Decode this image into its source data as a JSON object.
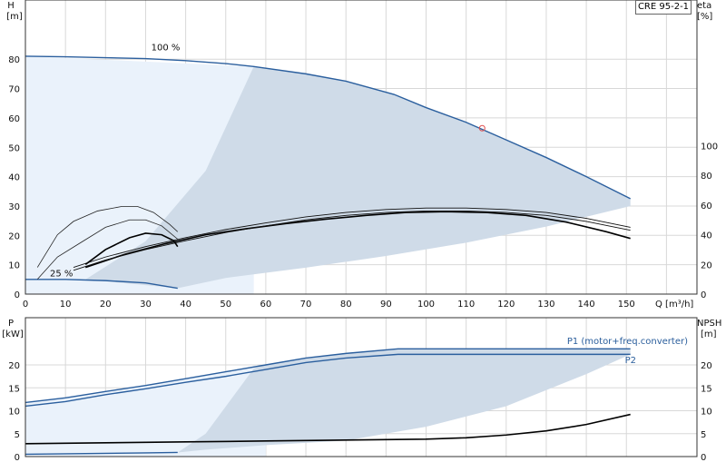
{
  "chart_data": [
    {
      "type": "line",
      "title": "CRE 95-2-1",
      "x_axis": {
        "label": "Q [m³/h]",
        "range": [
          0,
          160
        ],
        "ticks": [
          0,
          10,
          20,
          30,
          40,
          50,
          60,
          70,
          80,
          90,
          100,
          110,
          120,
          130,
          140,
          150
        ]
      },
      "y_left": {
        "label_top": "H",
        "label_unit": "[m]",
        "range": [
          0,
          90
        ],
        "ticks": [
          0,
          10,
          20,
          30,
          40,
          50,
          60,
          70,
          80
        ]
      },
      "y_right": {
        "label_top": "eta",
        "label_unit": "[%]",
        "range": [
          0,
          150
        ],
        "ticks": [
          0,
          20,
          40,
          60,
          80,
          100
        ]
      },
      "grid": true,
      "annotations": [
        {
          "text": "100 %",
          "x": 35,
          "y": 83
        },
        {
          "text": "25 %",
          "x": 9,
          "y": 6
        }
      ],
      "operating_point": {
        "x": 114,
        "y": 56.5
      },
      "series": [
        {
          "axis": "left",
          "style": "blue",
          "x": [
            0,
            10,
            20,
            30,
            40,
            50,
            57,
            70,
            80,
            92,
            100,
            110,
            120,
            130,
            140,
            151
          ],
          "y": [
            81,
            80.8,
            80.5,
            80.2,
            79.5,
            78.5,
            77.5,
            75,
            72.5,
            68,
            63.5,
            58.5,
            52.5,
            46.5,
            40,
            32.5
          ]
        },
        {
          "axis": "left",
          "style": "blue",
          "x": [
            0,
            10,
            20,
            30,
            38
          ],
          "y": [
            5,
            5,
            4.6,
            3.8,
            2
          ]
        },
        {
          "axis": "right",
          "style": "thick",
          "x": [
            15,
            25,
            35,
            45,
            55,
            65,
            75,
            85,
            95,
            105,
            115,
            125,
            135,
            145,
            151
          ],
          "y": [
            18,
            27,
            34,
            40,
            44,
            47.5,
            50.5,
            53,
            55,
            55.5,
            55,
            53,
            48.5,
            42,
            37.5
          ]
        },
        {
          "axis": "right",
          "style": "double",
          "x": [
            12,
            20,
            30,
            40,
            50,
            60,
            70,
            80,
            90,
            100,
            110,
            120,
            130,
            140,
            151
          ],
          "y": [
            18,
            25,
            32,
            38,
            43.5,
            48,
            52,
            55,
            57,
            58,
            58,
            57,
            55,
            51,
            45
          ]
        },
        {
          "axis": "right",
          "style": "double",
          "x": [
            12,
            20,
            30,
            40,
            50,
            60,
            70,
            80,
            90,
            100,
            110,
            120,
            130,
            140,
            151
          ],
          "y": [
            16,
            23,
            30,
            36,
            41.5,
            46,
            50,
            53,
            55,
            56,
            56,
            55,
            53,
            49,
            43
          ]
        },
        {
          "axis": "right",
          "style": "thin",
          "x": [
            3,
            8,
            12,
            18,
            24,
            28,
            32,
            36,
            38
          ],
          "y": [
            18,
            40,
            49,
            56,
            59,
            59,
            55,
            47,
            42
          ]
        },
        {
          "axis": "right",
          "style": "thin",
          "x": [
            3,
            8,
            14,
            20,
            26,
            30,
            34,
            38
          ],
          "y": [
            10,
            25,
            35,
            45,
            50,
            50,
            46,
            37
          ]
        },
        {
          "axis": "right",
          "style": "thick",
          "x": [
            15,
            20,
            26,
            30,
            34,
            37,
            38
          ],
          "y": [
            20,
            30,
            38,
            41,
            40,
            36,
            32
          ]
        }
      ]
    },
    {
      "type": "line",
      "x_axis": {
        "range": [
          0,
          160
        ]
      },
      "y_left": {
        "label_top": "P",
        "label_unit": "[kW]",
        "range": [
          0,
          25
        ],
        "ticks": [
          0,
          5,
          10,
          15,
          20
        ]
      },
      "y_right": {
        "label_top": "NPSH",
        "label_unit": "[m]",
        "range": [
          0,
          25
        ],
        "ticks": [
          0,
          5,
          10,
          15,
          20
        ]
      },
      "grid": true,
      "series": [
        {
          "name": "P1 (motor+freq.converter)",
          "axis": "left",
          "style": "blue",
          "x": [
            0,
            10,
            20,
            30,
            40,
            50,
            60,
            70,
            80,
            93,
            151
          ],
          "y": [
            11.8,
            12.8,
            14.2,
            15.5,
            17,
            18.5,
            20,
            21.5,
            22.5,
            23.5,
            23.5
          ]
        },
        {
          "name": "P2",
          "axis": "left",
          "style": "blue",
          "x": [
            0,
            10,
            20,
            30,
            40,
            50,
            60,
            70,
            80,
            93,
            151
          ],
          "y": [
            11,
            12,
            13.5,
            14.8,
            16.2,
            17.5,
            19,
            20.5,
            21.5,
            22.3,
            22.3
          ]
        },
        {
          "axis": "left",
          "style": "blue",
          "x": [
            0,
            10,
            20,
            30,
            38
          ],
          "y": [
            0.5,
            0.6,
            0.7,
            0.8,
            0.9
          ]
        },
        {
          "axis": "right",
          "style": "thick",
          "x": [
            0,
            20,
            40,
            60,
            80,
            100,
            110,
            120,
            130,
            140,
            151
          ],
          "y": [
            2.8,
            3,
            3.2,
            3.4,
            3.6,
            3.8,
            4.1,
            4.7,
            5.6,
            7,
            9.2
          ]
        }
      ]
    }
  ]
}
